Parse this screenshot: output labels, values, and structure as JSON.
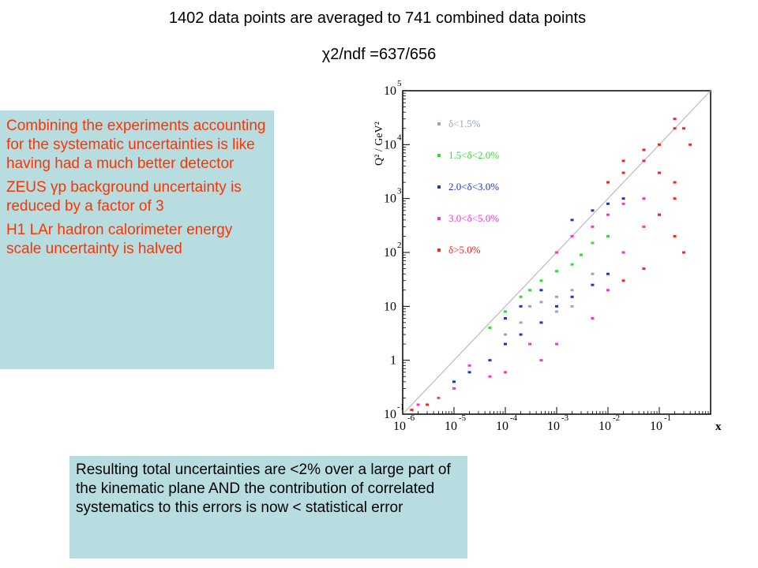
{
  "header": {
    "title": "1402 data points are averaged to 741 combined data points",
    "subtitle": "χ2/ndf =637/656"
  },
  "left_box": {
    "paragraphs": [
      "Combining the experiments accounting for the systematic uncertainties is like having had a much better detector",
      "ZEUS γp background uncertainty is reduced by  a factor of 3",
      "H1 LAr hadron calorimeter energy scale uncertainty is halved"
    ]
  },
  "bottom_box": {
    "text": "Resulting total uncertainties are <2% over a large part of the kinematic plane AND the contribution of correlated systematics to this errors is now < statistical error"
  },
  "colors": {
    "box_background": "#b7dde1",
    "highlight_text": "#ff3300",
    "diagonal": "#bbbbbb",
    "category_colors": [
      "#9aa6b8",
      "#33dd33",
      "#2233cc",
      "#ff33cc",
      "#ff2222"
    ]
  },
  "chart_data": {
    "type": "scatter",
    "xlabel": "x",
    "ylabel": "Q² / GeV²",
    "x_scale": "log",
    "y_scale": "log",
    "xlim": [
      1e-06,
      1
    ],
    "ylim": [
      0.1,
      100000
    ],
    "x_ticks": [
      {
        "base": "10",
        "exp": "-6"
      },
      {
        "base": "10",
        "exp": "-5"
      },
      {
        "base": "10",
        "exp": "-4"
      },
      {
        "base": "10",
        "exp": "-3"
      },
      {
        "base": "10",
        "exp": "-2"
      },
      {
        "base": "10",
        "exp": "-1"
      }
    ],
    "y_ticks": [
      {
        "base": "10",
        "exp": "-1"
      },
      {
        "base": "1",
        "exp": ""
      },
      {
        "base": "10",
        "exp": ""
      },
      {
        "base": "10",
        "exp": "2"
      },
      {
        "base": "10",
        "exp": "3"
      },
      {
        "base": "10",
        "exp": "4"
      },
      {
        "base": "10",
        "exp": "5"
      }
    ],
    "legend": {
      "placement": "top-left",
      "entries": [
        {
          "label": "δ<1.5%",
          "color": "#9aa6b8"
        },
        {
          "label": "1.5<δ<2.0%",
          "color": "#33dd33"
        },
        {
          "label": "2.0<δ<3.0%",
          "color": "#2233cc"
        },
        {
          "label": "3.0<δ<5.0%",
          "color": "#ff33cc"
        },
        {
          "label": "δ>5.0%",
          "color": "#ff2222"
        }
      ]
    },
    "kinematic_limit": "diagonal line from lower-left to upper-right",
    "series": [
      {
        "name": "δ<1.5%",
        "points": [
          [
            0.001,
            15
          ],
          [
            0.002,
            20
          ],
          [
            0.005,
            40
          ],
          [
            0.0003,
            10
          ],
          [
            0.0005,
            12
          ],
          [
            0.001,
            8
          ],
          [
            0.002,
            10
          ],
          [
            0.0001,
            3
          ],
          [
            0.0002,
            5
          ]
        ]
      },
      {
        "name": "1.5<δ<2.0%",
        "points": [
          [
            0.0002,
            15
          ],
          [
            0.0003,
            20
          ],
          [
            0.0005,
            30
          ],
          [
            0.001,
            45
          ],
          [
            0.002,
            60
          ],
          [
            0.0001,
            8
          ],
          [
            5e-05,
            4
          ],
          [
            0.003,
            90
          ],
          [
            0.005,
            150
          ],
          [
            0.01,
            200
          ]
        ]
      },
      {
        "name": "2.0<δ<3.0%",
        "points": [
          [
            5e-05,
            1
          ],
          [
            0.0001,
            2
          ],
          [
            0.0002,
            3
          ],
          [
            0.0005,
            5
          ],
          [
            0.001,
            10
          ],
          [
            0.002,
            15
          ],
          [
            0.005,
            25
          ],
          [
            0.01,
            40
          ],
          [
            0.002,
            400
          ],
          [
            0.005,
            600
          ],
          [
            0.01,
            800
          ],
          [
            0.02,
            1000
          ],
          [
            1e-05,
            0.4
          ],
          [
            2e-05,
            0.6
          ],
          [
            0.0001,
            6
          ],
          [
            0.0002,
            10
          ],
          [
            0.0005,
            20
          ]
        ]
      },
      {
        "name": "3.0<δ<5.0%",
        "points": [
          [
            2e-06,
            0.15
          ],
          [
            5e-06,
            0.2
          ],
          [
            1e-05,
            0.3
          ],
          [
            5e-05,
            0.5
          ],
          [
            0.0001,
            0.6
          ],
          [
            0.0005,
            1
          ],
          [
            0.001,
            2
          ],
          [
            0.005,
            6
          ],
          [
            0.01,
            20
          ],
          [
            0.02,
            100
          ],
          [
            0.05,
            300
          ],
          [
            0.1,
            500
          ],
          [
            0.01,
            500
          ],
          [
            0.02,
            800
          ],
          [
            0.05,
            1000
          ],
          [
            0.001,
            100
          ],
          [
            0.002,
            200
          ],
          [
            0.005,
            300
          ],
          [
            2e-05,
            0.8
          ],
          [
            0.0003,
            2
          ]
        ]
      },
      {
        "name": "δ>5.0%",
        "points": [
          [
            0.01,
            2000
          ],
          [
            0.02,
            3000
          ],
          [
            0.05,
            5000
          ],
          [
            0.1,
            10000
          ],
          [
            0.2,
            20000
          ],
          [
            0.02,
            5000
          ],
          [
            0.05,
            8000
          ],
          [
            0.2,
            30000
          ],
          [
            0.3,
            20000
          ],
          [
            0.4,
            10000
          ],
          [
            0.1,
            3000
          ],
          [
            0.2,
            2000
          ],
          [
            0.1,
            500
          ],
          [
            0.2,
            1000
          ],
          [
            0.2,
            200
          ],
          [
            0.3,
            100
          ],
          [
            0.05,
            50
          ],
          [
            0.02,
            30
          ],
          [
            1.5e-06,
            0.12
          ],
          [
            3e-06,
            0.15
          ]
        ]
      }
    ]
  }
}
